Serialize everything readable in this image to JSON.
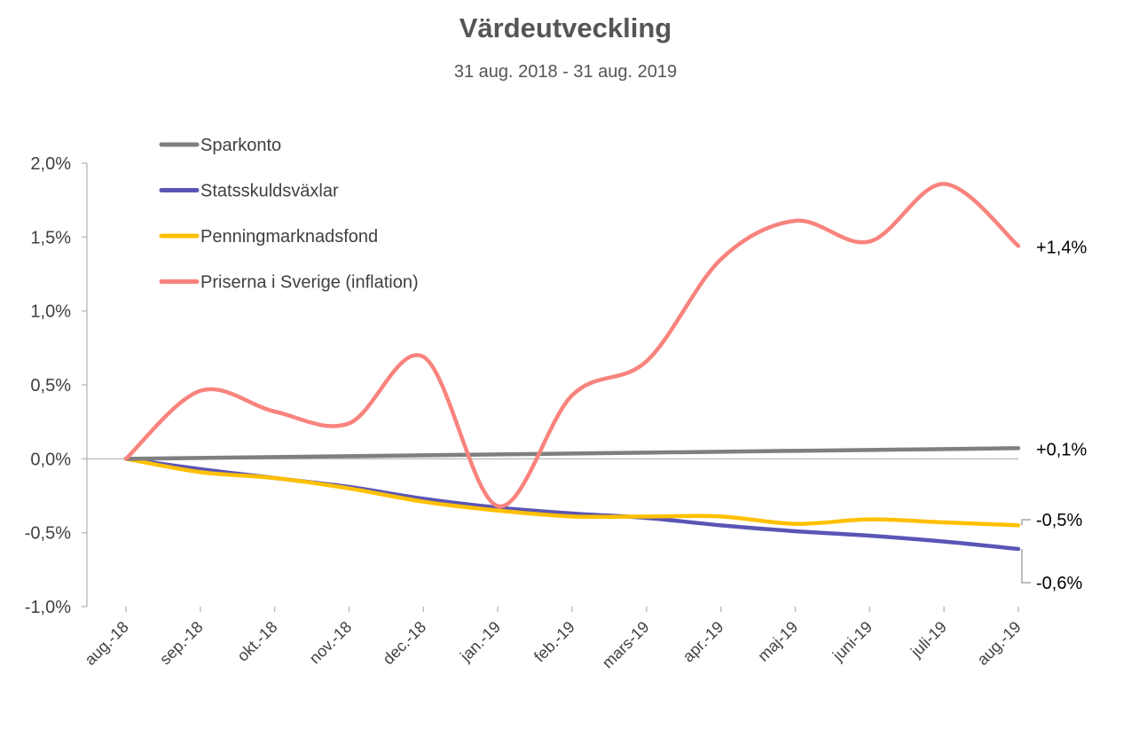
{
  "chart_data": {
    "type": "line",
    "title": "Värdeutveckling",
    "subtitle": "31 aug. 2018 - 31 aug. 2019",
    "categories": [
      "aug.-18",
      "sep.-18",
      "okt.-18",
      "nov.-18",
      "dec.-18",
      "jan.-19",
      "feb.-19",
      "mars-19",
      "apr.-19",
      "maj-19",
      "juni-19",
      "juli-19",
      "aug.-19"
    ],
    "ylim": [
      -1.0,
      2.0
    ],
    "yticks": [
      2.0,
      1.5,
      1.0,
      0.5,
      0.0,
      -0.5,
      -1.0
    ],
    "ytick_labels": [
      "2,0%",
      "1,5%",
      "1,0%",
      "0,5%",
      "0,0%",
      "-0,5%",
      "-1,0%"
    ],
    "grid": false,
    "legend_position": "top-left",
    "series": [
      {
        "name": "Sparkonto",
        "color": "#7f7f7f",
        "values": [
          0.0,
          0.006,
          0.012,
          0.018,
          0.024,
          0.03,
          0.036,
          0.042,
          0.048,
          0.054,
          0.06,
          0.066,
          0.072
        ],
        "end_label": "+0,1%"
      },
      {
        "name": "Statsskuldsväxlar",
        "color": "#5a55b5",
        "values": [
          0.0,
          -0.07,
          -0.13,
          -0.19,
          -0.27,
          -0.33,
          -0.37,
          -0.4,
          -0.45,
          -0.49,
          -0.52,
          -0.56,
          -0.61
        ],
        "end_label": "-0,6%"
      },
      {
        "name": "Penningmarknadsfond",
        "color": "#ffc000",
        "values": [
          0.0,
          -0.09,
          -0.13,
          -0.2,
          -0.29,
          -0.35,
          -0.39,
          -0.39,
          -0.39,
          -0.44,
          -0.41,
          -0.43,
          -0.45
        ],
        "end_label": "-0,5%"
      },
      {
        "name": "Priserna i Sverige (inflation)",
        "color": "#f8837d",
        "values": [
          0.0,
          0.46,
          0.32,
          0.24,
          0.69,
          -0.32,
          0.43,
          0.66,
          1.35,
          1.61,
          1.47,
          1.86,
          1.44
        ],
        "end_label": "+1,4%"
      }
    ]
  }
}
